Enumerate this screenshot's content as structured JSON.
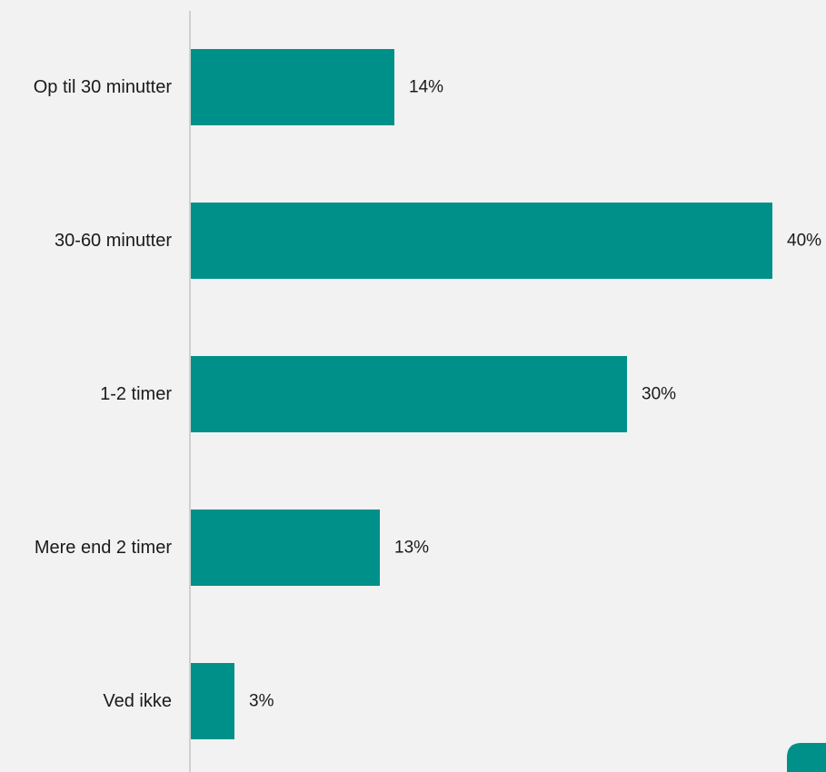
{
  "chart_data": {
    "type": "bar",
    "orientation": "horizontal",
    "categories": [
      "Op til 30 minutter",
      "30-60 minutter",
      "1-2 timer",
      "Mere end 2 timer",
      "Ved ikke"
    ],
    "values": [
      14,
      40,
      30,
      13,
      3
    ],
    "value_labels": [
      "14%",
      "40%",
      "30%",
      "13%",
      "3%"
    ],
    "unit": "%",
    "xlim": [
      0,
      40
    ],
    "title": "",
    "xlabel": "",
    "ylabel": "",
    "grid": false,
    "legend": "none",
    "colors": {
      "bar": "#00908a",
      "background": "#f2f2f2",
      "axis": "#cfcfcf",
      "text": "#1a1a1a",
      "corner_mark": "#00908a"
    }
  }
}
